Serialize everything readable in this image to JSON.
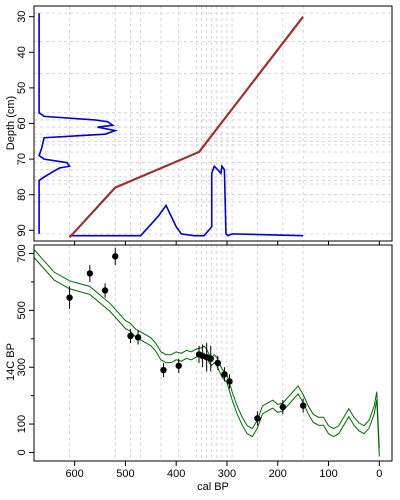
{
  "chart_data": [
    {
      "type": "line",
      "name_note": "",
      "ylabel": "Depth (cm)",
      "yticks": [
        30,
        40,
        50,
        60,
        70,
        80,
        90
      ],
      "ylim": [
        93,
        27
      ],
      "xlim": [
        680,
        -25
      ],
      "age_depth_model": {
        "color": "#993333",
        "points": [
          [
            610,
            92
          ],
          [
            520,
            78
          ],
          [
            355,
            68
          ],
          [
            150,
            30
          ]
        ]
      },
      "depth_lines": [
        29,
        37,
        46,
        57,
        59,
        61,
        63,
        64,
        65,
        66,
        68,
        71,
        73,
        75,
        76,
        77,
        80,
        82,
        91
      ],
      "age_lines": [
        150,
        190,
        240,
        290,
        300,
        310,
        320,
        330,
        340,
        350,
        360,
        395,
        430,
        470,
        490,
        520,
        610
      ],
      "depth_probability": {
        "color": "#0000cc",
        "points": [
          [
            670,
            29
          ],
          [
            670,
            57
          ],
          [
            660,
            58
          ],
          [
            560,
            59
          ],
          [
            535,
            59.5
          ],
          [
            525,
            60.5
          ],
          [
            555,
            61
          ],
          [
            520,
            62
          ],
          [
            540,
            63
          ],
          [
            660,
            64
          ],
          [
            665,
            67
          ],
          [
            670,
            69
          ],
          [
            660,
            70
          ],
          [
            615,
            71
          ],
          [
            610,
            72
          ],
          [
            630,
            72.5
          ],
          [
            660,
            75
          ],
          [
            670,
            76
          ],
          [
            670,
            91
          ]
        ]
      },
      "age_probability": {
        "color": "#0000cc",
        "points": [
          [
            610,
            91.5
          ],
          [
            470,
            91.5
          ],
          [
            435,
            86
          ],
          [
            420,
            83
          ],
          [
            400,
            89
          ],
          [
            390,
            91
          ],
          [
            365,
            91.5
          ],
          [
            345,
            91.5
          ],
          [
            330,
            89
          ],
          [
            330,
            74
          ],
          [
            325,
            72
          ],
          [
            318,
            73
          ],
          [
            312,
            74
          ],
          [
            310,
            72
          ],
          [
            305,
            73
          ],
          [
            302,
            91
          ],
          [
            298,
            91.5
          ],
          [
            290,
            91
          ],
          [
            150,
            91.5
          ]
        ]
      }
    },
    {
      "type": "scatter",
      "xlabel": "cal BP",
      "ylabel": "14C BP",
      "xticks": [
        600,
        500,
        400,
        300,
        200,
        100,
        0
      ],
      "yticks": [
        0,
        100,
        300,
        500,
        700
      ],
      "xlim": [
        680,
        -25
      ],
      "ylim": [
        -30,
        730
      ],
      "curve_color": "#006600",
      "calibration_curve": {
        "x": [
          680,
          660,
          640,
          610,
          590,
          570,
          550,
          530,
          510,
          500,
          490,
          480,
          470,
          460,
          450,
          440,
          430,
          420,
          410,
          400,
          390,
          380,
          370,
          360,
          350,
          345,
          340,
          335,
          330,
          325,
          320,
          315,
          310,
          305,
          300,
          295,
          290,
          280,
          270,
          260,
          250,
          240,
          230,
          220,
          210,
          200,
          190,
          180,
          170,
          160,
          150,
          140,
          130,
          120,
          110,
          100,
          90,
          80,
          70,
          60,
          50,
          40,
          30,
          20,
          10,
          5,
          0
        ],
        "y": [
          700,
          660,
          620,
          590,
          580,
          570,
          540,
          510,
          470,
          450,
          440,
          420,
          410,
          400,
          390,
          370,
          340,
          330,
          330,
          340,
          335,
          345,
          340,
          350,
          355,
          360,
          350,
          330,
          320,
          330,
          320,
          300,
          280,
          270,
          260,
          230,
          200,
          150,
          110,
          80,
          70,
          100,
          150,
          160,
          170,
          155,
          160,
          180,
          200,
          220,
          190,
          150,
          120,
          110,
          110,
          80,
          70,
          80,
          110,
          140,
          110,
          90,
          80,
          100,
          150,
          200,
          0
        ],
        "band": 14
      },
      "points": [
        {
          "x": 610,
          "y": 545,
          "err": 40
        },
        {
          "x": 570,
          "y": 630,
          "err": 30
        },
        {
          "x": 540,
          "y": 570,
          "err": 25
        },
        {
          "x": 520,
          "y": 690,
          "err": 30
        },
        {
          "x": 490,
          "y": 410,
          "err": 25
        },
        {
          "x": 475,
          "y": 405,
          "err": 25
        },
        {
          "x": 425,
          "y": 290,
          "err": 25
        },
        {
          "x": 395,
          "y": 305,
          "err": 25
        },
        {
          "x": 355,
          "y": 345,
          "err": 30
        },
        {
          "x": 348,
          "y": 340,
          "err": 40
        },
        {
          "x": 340,
          "y": 335,
          "err": 50
        },
        {
          "x": 332,
          "y": 330,
          "err": 45
        },
        {
          "x": 318,
          "y": 315,
          "err": 25
        },
        {
          "x": 305,
          "y": 275,
          "err": 25
        },
        {
          "x": 295,
          "y": 250,
          "err": 25
        },
        {
          "x": 240,
          "y": 120,
          "err": 25
        },
        {
          "x": 190,
          "y": 160,
          "err": 25
        },
        {
          "x": 150,
          "y": 165,
          "err": 25
        }
      ]
    }
  ]
}
